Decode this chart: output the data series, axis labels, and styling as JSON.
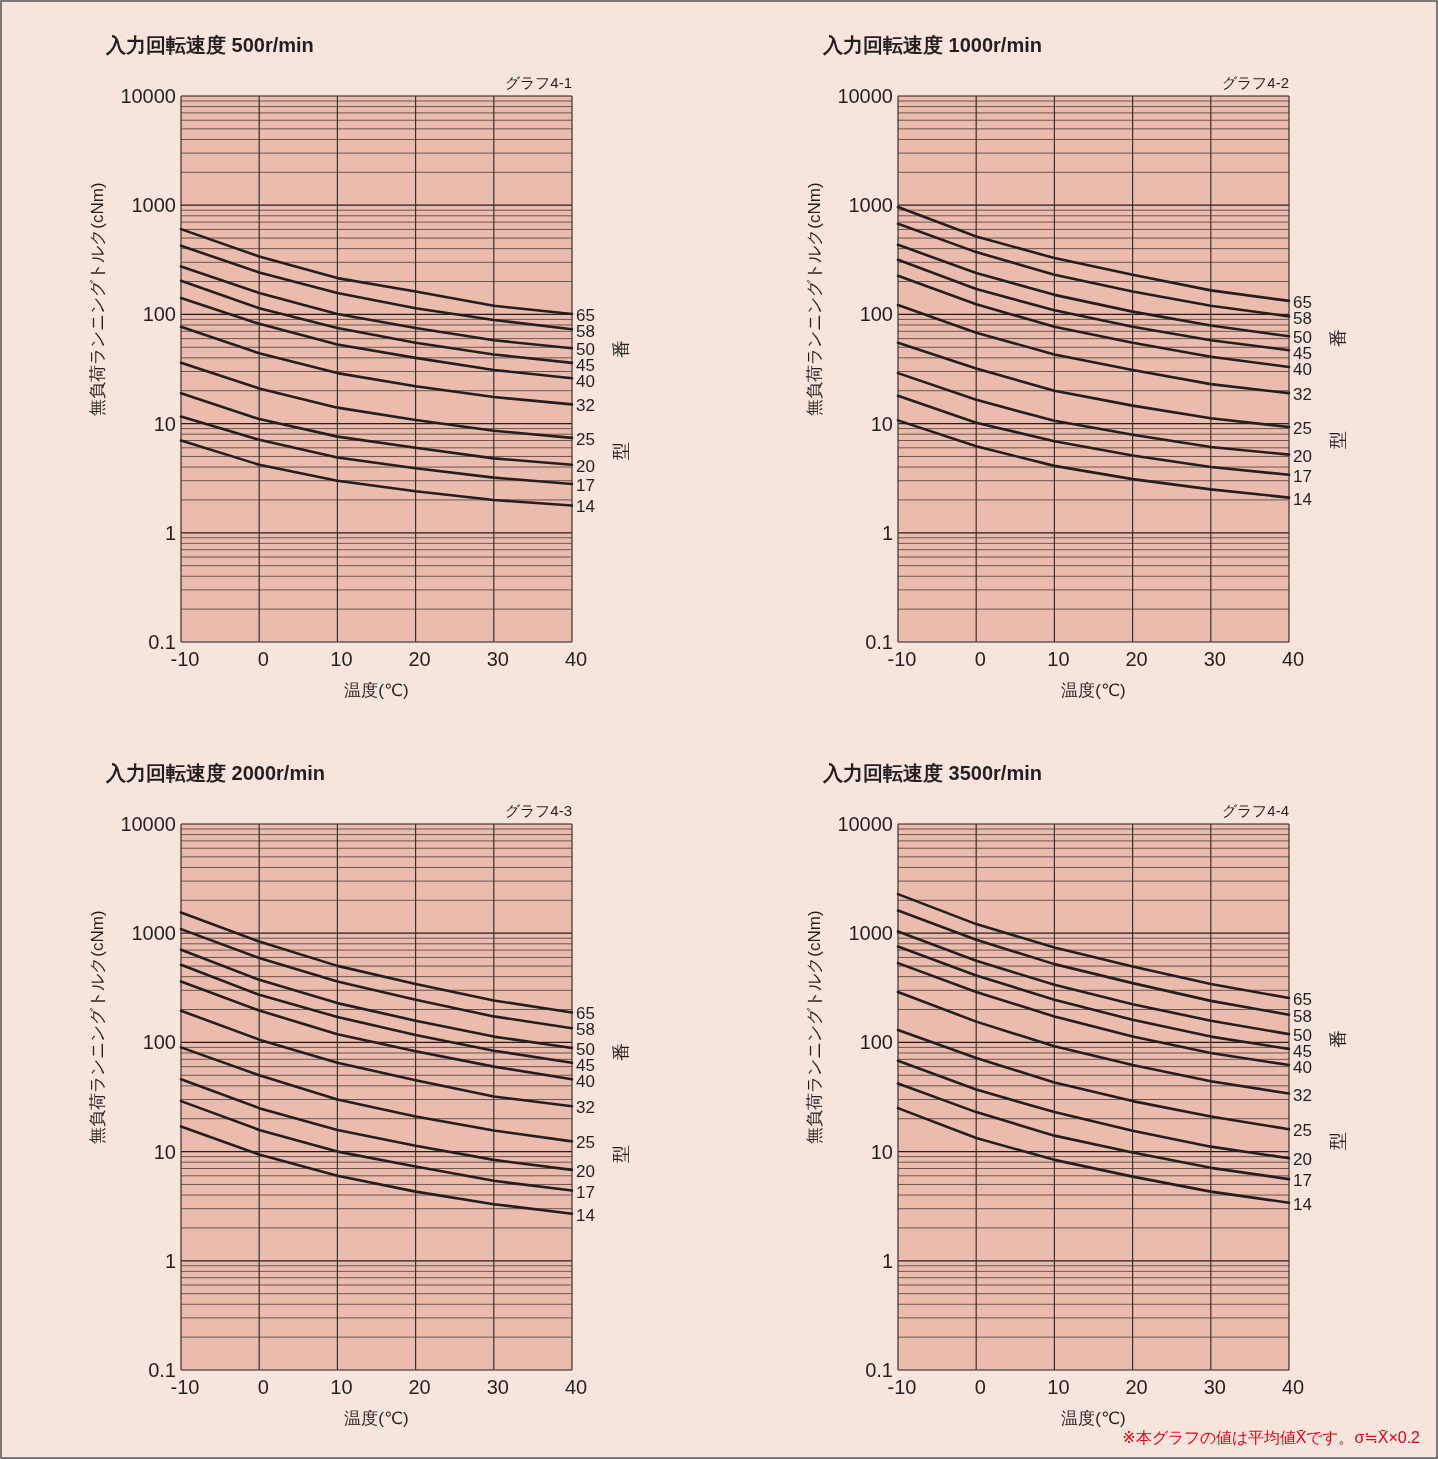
{
  "chart_data": [
    {
      "type": "line",
      "title": "入力回転速度 500r/min",
      "annotations": [
        "グラフ4-1"
      ],
      "xlabel": "温度(℃)",
      "ylabel": "無負荷ランニングトルク(cNm)",
      "legend_title": "型番",
      "x": [
        -10,
        0,
        10,
        20,
        30,
        40
      ],
      "xlim": [
        -10,
        40
      ],
      "xticks": [
        -10,
        0,
        10,
        20,
        30,
        40
      ],
      "ylim": [
        0.1,
        10000
      ],
      "yticks": [
        0.1,
        1,
        10,
        100,
        1000,
        10000
      ],
      "log": true,
      "grid": true,
      "series": [
        {
          "name": "65",
          "color": "#231f20",
          "values": [
            604,
            339,
            215,
            162,
            120,
            101
          ]
        },
        {
          "name": "58",
          "color": "#231f20",
          "values": [
            425,
            242,
            157,
            114,
            89,
            73
          ]
        },
        {
          "name": "50",
          "color": "#231f20",
          "values": [
            275,
            157,
            101,
            75,
            58,
            49
          ]
        },
        {
          "name": "45",
          "color": "#231f20",
          "values": [
            203,
            114,
            75,
            55,
            43,
            36
          ]
        },
        {
          "name": "40",
          "color": "#231f20",
          "values": [
            141,
            82,
            53,
            40,
            31,
            26
          ]
        },
        {
          "name": "32",
          "color": "#231f20",
          "values": [
            77,
            44,
            29,
            22,
            17.5,
            15
          ]
        },
        {
          "name": "25",
          "color": "#231f20",
          "values": [
            36,
            21,
            14,
            10.8,
            8.6,
            7.4
          ]
        },
        {
          "name": "20",
          "color": "#231f20",
          "values": [
            19,
            11,
            7.6,
            6.0,
            4.8,
            4.2
          ]
        },
        {
          "name": "17",
          "color": "#231f20",
          "values": [
            11.6,
            7.1,
            4.9,
            3.9,
            3.2,
            2.8
          ]
        },
        {
          "name": "14",
          "color": "#231f20",
          "values": [
            7.0,
            4.2,
            3.0,
            2.4,
            2.0,
            1.78
          ]
        }
      ]
    },
    {
      "type": "line",
      "title": "入力回転速度 1000r/min",
      "annotations": [
        "グラフ4-2"
      ],
      "xlabel": "温度(℃)",
      "ylabel": "無負荷ランニングトルク(cNm)",
      "legend_title": "型番",
      "x": [
        -10,
        0,
        10,
        20,
        30,
        40
      ],
      "xlim": [
        -10,
        40
      ],
      "xticks": [
        -10,
        0,
        10,
        20,
        30,
        40
      ],
      "ylim": [
        0.1,
        10000
      ],
      "yticks": [
        0.1,
        1,
        10,
        100,
        1000,
        10000
      ],
      "log": true,
      "grid": true,
      "series": [
        {
          "name": "65",
          "color": "#231f20",
          "values": [
            961,
            517,
            328,
            231,
            166,
            133
          ]
        },
        {
          "name": "58",
          "color": "#231f20",
          "values": [
            676,
            372,
            231,
            162,
            120,
            96
          ]
        },
        {
          "name": "50",
          "color": "#231f20",
          "values": [
            434,
            239,
            151,
            106,
            79,
            63
          ]
        },
        {
          "name": "45",
          "color": "#231f20",
          "values": [
            316,
            171,
            109,
            77,
            58,
            47
          ]
        },
        {
          "name": "40",
          "color": "#231f20",
          "values": [
            226,
            124,
            77,
            55,
            41,
            33
          ]
        },
        {
          "name": "32",
          "color": "#231f20",
          "values": [
            122,
            68,
            43,
            31,
            23,
            19
          ]
        },
        {
          "name": "25",
          "color": "#231f20",
          "values": [
            55,
            32,
            20,
            14.6,
            11.2,
            9.3
          ]
        },
        {
          "name": "20",
          "color": "#231f20",
          "values": [
            29,
            16.5,
            10.6,
            7.9,
            6.1,
            5.2
          ]
        },
        {
          "name": "17",
          "color": "#231f20",
          "values": [
            18,
            10.2,
            6.9,
            5.1,
            4.0,
            3.4
          ]
        },
        {
          "name": "14",
          "color": "#231f20",
          "values": [
            10.7,
            6.2,
            4.1,
            3.1,
            2.5,
            2.1
          ]
        }
      ]
    },
    {
      "type": "line",
      "title": "入力回転速度 2000r/min",
      "annotations": [
        "グラフ4-3"
      ],
      "xlabel": "温度(℃)",
      "ylabel": "無負荷ランニングトルク(cNm)",
      "legend_title": "型番",
      "x": [
        -10,
        0,
        10,
        20,
        30,
        40
      ],
      "xlim": [
        -10,
        40
      ],
      "xticks": [
        -10,
        0,
        10,
        20,
        30,
        40
      ],
      "ylim": [
        0.1,
        10000
      ],
      "yticks": [
        0.1,
        1,
        10,
        100,
        1000,
        10000
      ],
      "log": true,
      "grid": true,
      "series": [
        {
          "name": "65",
          "color": "#231f20",
          "values": [
            1549,
            840,
            502,
            342,
            242,
            188
          ]
        },
        {
          "name": "58",
          "color": "#231f20",
          "values": [
            1090,
            592,
            361,
            246,
            173,
            135
          ]
        },
        {
          "name": "50",
          "color": "#231f20",
          "values": [
            705,
            374,
            229,
            158,
            113,
            89
          ]
        },
        {
          "name": "45",
          "color": "#231f20",
          "values": [
            514,
            273,
            171,
            117,
            84,
            65
          ]
        },
        {
          "name": "40",
          "color": "#231f20",
          "values": [
            361,
            196,
            119,
            83,
            60,
            46
          ]
        },
        {
          "name": "32",
          "color": "#231f20",
          "values": [
            195,
            106,
            65,
            45,
            32,
            26
          ]
        },
        {
          "name": "25",
          "color": "#231f20",
          "values": [
            90,
            50,
            30,
            21,
            15.6,
            12.4
          ]
        },
        {
          "name": "20",
          "color": "#231f20",
          "values": [
            46,
            25,
            15.8,
            11.3,
            8.4,
            6.8
          ]
        },
        {
          "name": "17",
          "color": "#231f20",
          "values": [
            29,
            15.8,
            10,
            7.3,
            5.4,
            4.4
          ]
        },
        {
          "name": "14",
          "color": "#231f20",
          "values": [
            17,
            9.4,
            6.0,
            4.3,
            3.3,
            2.7
          ]
        }
      ]
    },
    {
      "type": "line",
      "title": "入力回転速度 3500r/min",
      "annotations": [
        "グラフ4-4",
        "※本グラフの値は平均値X̄です。σ≒X̄×0.2"
      ],
      "xlabel": "温度(℃)",
      "ylabel": "無負荷ランニングトルク(cNm)",
      "legend_title": "型番",
      "x": [
        -10,
        0,
        10,
        20,
        30,
        40
      ],
      "xlim": [
        -10,
        40
      ],
      "xticks": [
        -10,
        0,
        10,
        20,
        30,
        40
      ],
      "ylim": [
        0.1,
        10000
      ],
      "yticks": [
        0.1,
        1,
        10,
        100,
        1000,
        10000
      ],
      "log": true,
      "grid": true,
      "series": [
        {
          "name": "65",
          "color": "#231f20",
          "values": [
            2280,
            1211,
            740,
            495,
            342,
            255
          ]
        },
        {
          "name": "58",
          "color": "#231f20",
          "values": [
            1614,
            871,
            521,
            349,
            240,
            179
          ]
        },
        {
          "name": "50",
          "color": "#231f20",
          "values": [
            1038,
            559,
            337,
            224,
            158,
            119
          ]
        },
        {
          "name": "45",
          "color": "#231f20",
          "values": [
            755,
            410,
            246,
            161,
            113,
            87
          ]
        },
        {
          "name": "40",
          "color": "#231f20",
          "values": [
            532,
            289,
            173,
            113,
            80,
            62
          ]
        },
        {
          "name": "32",
          "color": "#231f20",
          "values": [
            289,
            155,
            92,
            62,
            44,
            34
          ]
        },
        {
          "name": "25",
          "color": "#231f20",
          "values": [
            130,
            72,
            43,
            29,
            21,
            16
          ]
        },
        {
          "name": "20",
          "color": "#231f20",
          "values": [
            68,
            37,
            23,
            15.5,
            11.1,
            8.7
          ]
        },
        {
          "name": "17",
          "color": "#231f20",
          "values": [
            42,
            23,
            14,
            9.8,
            7.1,
            5.6
          ]
        },
        {
          "name": "14",
          "color": "#231f20",
          "values": [
            25,
            13.3,
            8.4,
            5.9,
            4.3,
            3.4
          ]
        }
      ]
    }
  ]
}
